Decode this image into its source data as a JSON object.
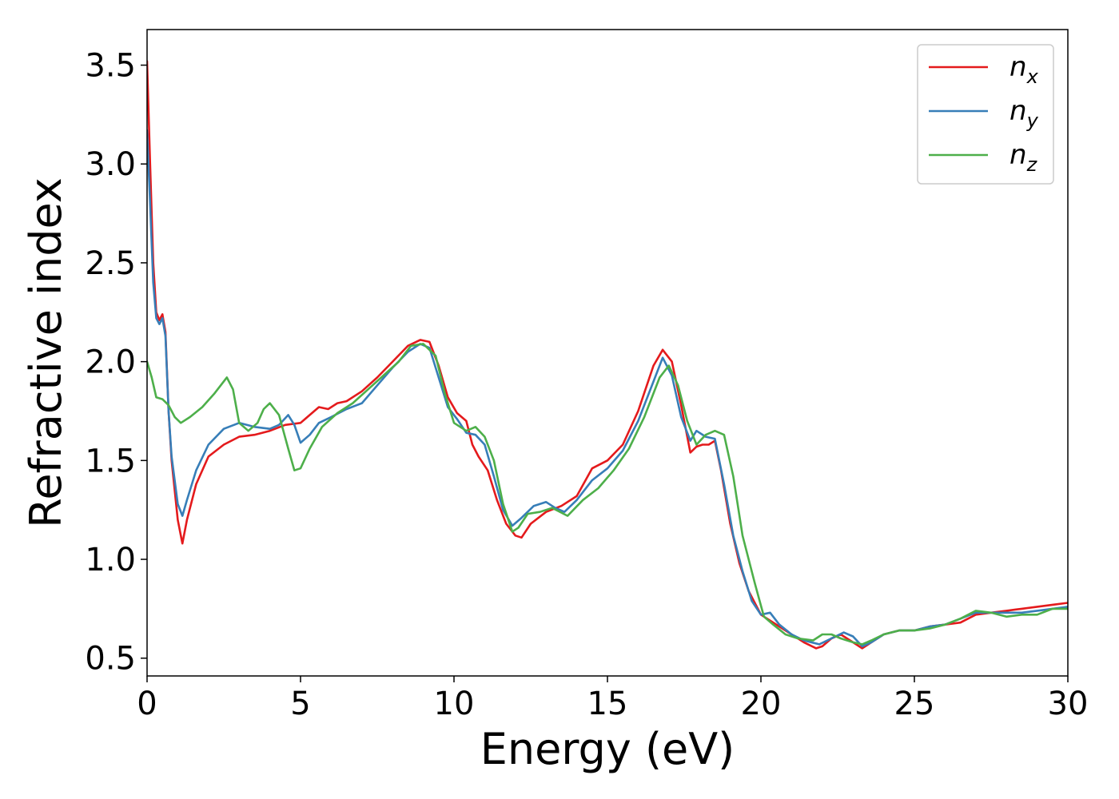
{
  "chart_data": {
    "type": "line",
    "xlabel": "Energy (eV)",
    "ylabel": "Refractive index",
    "xlim": [
      0,
      30
    ],
    "ylim": [
      0.41,
      3.68
    ],
    "x_ticks": [
      "0",
      "5",
      "10",
      "15",
      "20",
      "25",
      "30"
    ],
    "x_tick_values": [
      0,
      5,
      10,
      15,
      20,
      25,
      30
    ],
    "y_ticks": [
      "0.5",
      "1.0",
      "1.5",
      "2.0",
      "2.5",
      "3.0",
      "3.5"
    ],
    "y_tick_values": [
      0.5,
      1.0,
      1.5,
      2.0,
      2.5,
      3.0,
      3.5
    ],
    "grid": false,
    "legend_position": "top-right",
    "series": [
      {
        "name": "n_x",
        "legend_base": "n",
        "legend_sub": "x",
        "color": "#e41a1c",
        "x": [
          0,
          0.1,
          0.2,
          0.3,
          0.4,
          0.5,
          0.6,
          0.7,
          0.8,
          1.0,
          1.15,
          1.3,
          1.6,
          2.0,
          2.5,
          3.0,
          3.5,
          4.0,
          4.5,
          5.0,
          5.3,
          5.6,
          5.9,
          6.2,
          6.5,
          7.0,
          7.5,
          8.0,
          8.5,
          8.9,
          9.2,
          9.5,
          9.8,
          10.1,
          10.4,
          10.6,
          10.8,
          11.1,
          11.4,
          11.7,
          12.0,
          12.2,
          12.5,
          13.0,
          13.5,
          14.0,
          14.5,
          15.0,
          15.5,
          16.0,
          16.5,
          16.8,
          17.1,
          17.4,
          17.7,
          17.9,
          18.1,
          18.3,
          18.5,
          18.7,
          19.0,
          19.3,
          19.6,
          20.0,
          20.3,
          20.6,
          21.0,
          21.4,
          21.8,
          22.0,
          22.3,
          22.6,
          23.0,
          23.3,
          23.6,
          24.0,
          24.5,
          25.0,
          25.5,
          26.0,
          26.5,
          27.0,
          27.5,
          28.0,
          28.5,
          29.0,
          29.5,
          30.0
        ],
        "y": [
          3.52,
          3.0,
          2.5,
          2.25,
          2.21,
          2.24,
          2.15,
          1.75,
          1.5,
          1.2,
          1.08,
          1.2,
          1.38,
          1.52,
          1.58,
          1.62,
          1.63,
          1.65,
          1.68,
          1.69,
          1.73,
          1.77,
          1.76,
          1.79,
          1.8,
          1.85,
          1.92,
          2.0,
          2.08,
          2.11,
          2.1,
          1.98,
          1.82,
          1.74,
          1.7,
          1.58,
          1.52,
          1.45,
          1.3,
          1.18,
          1.12,
          1.11,
          1.18,
          1.24,
          1.27,
          1.32,
          1.46,
          1.5,
          1.58,
          1.75,
          1.98,
          2.06,
          2.0,
          1.78,
          1.54,
          1.57,
          1.58,
          1.58,
          1.6,
          1.45,
          1.18,
          0.98,
          0.84,
          0.72,
          0.69,
          0.66,
          0.62,
          0.58,
          0.55,
          0.56,
          0.6,
          0.62,
          0.58,
          0.55,
          0.58,
          0.62,
          0.64,
          0.64,
          0.66,
          0.67,
          0.68,
          0.72,
          0.73,
          0.74,
          0.75,
          0.76,
          0.77,
          0.78
        ]
      },
      {
        "name": "n_y",
        "legend_base": "n",
        "legend_sub": "y",
        "color": "#377eb8",
        "x": [
          0,
          0.1,
          0.2,
          0.3,
          0.4,
          0.5,
          0.6,
          0.7,
          0.8,
          1.0,
          1.15,
          1.3,
          1.6,
          2.0,
          2.5,
          3.0,
          3.5,
          4.0,
          4.3,
          4.6,
          4.8,
          5.0,
          5.3,
          5.6,
          6.0,
          6.5,
          7.0,
          7.5,
          8.0,
          8.5,
          8.9,
          9.2,
          9.5,
          9.8,
          10.1,
          10.4,
          10.7,
          11.0,
          11.3,
          11.6,
          11.9,
          12.2,
          12.6,
          13.0,
          13.3,
          13.6,
          14.0,
          14.5,
          15.0,
          15.5,
          16.0,
          16.5,
          16.8,
          17.1,
          17.4,
          17.7,
          17.9,
          18.2,
          18.5,
          18.8,
          19.1,
          19.4,
          19.7,
          20.0,
          20.3,
          20.6,
          21.0,
          21.4,
          21.9,
          22.3,
          22.7,
          23.0,
          23.3,
          23.6,
          24.0,
          24.5,
          25.0,
          25.5,
          26.0,
          26.5,
          27.0,
          27.5,
          28.0,
          28.5,
          29.0,
          29.5,
          30.0
        ],
        "y": [
          3.17,
          2.8,
          2.4,
          2.22,
          2.19,
          2.22,
          2.13,
          1.75,
          1.52,
          1.28,
          1.22,
          1.3,
          1.45,
          1.58,
          1.66,
          1.69,
          1.67,
          1.66,
          1.68,
          1.73,
          1.68,
          1.59,
          1.63,
          1.69,
          1.72,
          1.76,
          1.79,
          1.88,
          1.97,
          2.05,
          2.09,
          2.07,
          1.92,
          1.77,
          1.71,
          1.64,
          1.63,
          1.58,
          1.42,
          1.25,
          1.17,
          1.21,
          1.27,
          1.29,
          1.26,
          1.24,
          1.3,
          1.4,
          1.46,
          1.55,
          1.7,
          1.9,
          2.02,
          1.93,
          1.72,
          1.6,
          1.65,
          1.62,
          1.61,
          1.38,
          1.12,
          0.94,
          0.79,
          0.72,
          0.73,
          0.67,
          0.62,
          0.59,
          0.57,
          0.6,
          0.63,
          0.61,
          0.56,
          0.58,
          0.62,
          0.64,
          0.64,
          0.66,
          0.67,
          0.7,
          0.73,
          0.73,
          0.73,
          0.73,
          0.74,
          0.75,
          0.76
        ]
      },
      {
        "name": "n_z",
        "legend_base": "n",
        "legend_sub": "z",
        "color": "#4daf4a",
        "x": [
          0,
          0.15,
          0.3,
          0.5,
          0.7,
          0.9,
          1.1,
          1.4,
          1.8,
          2.2,
          2.6,
          2.8,
          3.0,
          3.3,
          3.6,
          3.8,
          4.0,
          4.3,
          4.6,
          4.8,
          5.0,
          5.3,
          5.7,
          6.2,
          6.7,
          7.2,
          7.7,
          8.2,
          8.6,
          9.0,
          9.4,
          9.7,
          10.0,
          10.4,
          10.7,
          11.0,
          11.3,
          11.6,
          11.9,
          12.1,
          12.4,
          12.8,
          13.2,
          13.7,
          14.2,
          14.7,
          15.2,
          15.7,
          16.2,
          16.7,
          17.0,
          17.3,
          17.6,
          17.9,
          18.2,
          18.5,
          18.8,
          19.1,
          19.4,
          19.8,
          20.1,
          20.4,
          20.8,
          21.2,
          21.7,
          22.0,
          22.3,
          22.6,
          23.0,
          23.3,
          23.6,
          24.0,
          24.5,
          25.0,
          25.5,
          26.0,
          26.5,
          27.0,
          27.5,
          28.0,
          28.5,
          29.0,
          29.5,
          30.0
        ],
        "y": [
          2.0,
          1.92,
          1.82,
          1.81,
          1.78,
          1.72,
          1.69,
          1.72,
          1.77,
          1.84,
          1.92,
          1.86,
          1.69,
          1.65,
          1.69,
          1.76,
          1.79,
          1.73,
          1.56,
          1.45,
          1.46,
          1.56,
          1.67,
          1.74,
          1.79,
          1.86,
          1.93,
          2.0,
          2.08,
          2.09,
          2.03,
          1.84,
          1.69,
          1.65,
          1.67,
          1.62,
          1.5,
          1.28,
          1.14,
          1.16,
          1.23,
          1.24,
          1.26,
          1.22,
          1.3,
          1.36,
          1.45,
          1.56,
          1.72,
          1.92,
          1.98,
          1.88,
          1.7,
          1.58,
          1.63,
          1.65,
          1.63,
          1.42,
          1.12,
          0.88,
          0.71,
          0.67,
          0.62,
          0.6,
          0.59,
          0.62,
          0.62,
          0.6,
          0.58,
          0.57,
          0.59,
          0.62,
          0.64,
          0.64,
          0.65,
          0.67,
          0.7,
          0.74,
          0.73,
          0.71,
          0.72,
          0.72,
          0.75,
          0.75
        ]
      }
    ]
  }
}
